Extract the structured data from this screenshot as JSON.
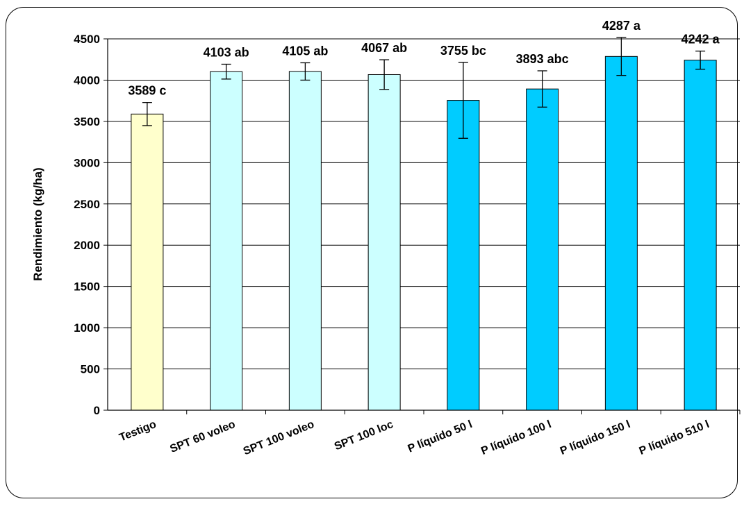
{
  "chart_data": {
    "type": "bar",
    "title": "",
    "xlabel": "",
    "ylabel": "Rendimiento (kg/ha)",
    "ylim": [
      0,
      4500
    ],
    "yticks": [
      0,
      500,
      1000,
      1500,
      2000,
      2500,
      3000,
      3500,
      4000,
      4500
    ],
    "grid": true,
    "categories": [
      "Testigo",
      "SPT 60 voleo",
      "SPT 100 voleo",
      "SPT 100 loc",
      "P líquido 50 l",
      "P líquido 100 l",
      "P líquido 150 l",
      "P líquido 510 l"
    ],
    "values": [
      3589,
      4103,
      4105,
      4067,
      3755,
      3893,
      4287,
      4242
    ],
    "error": [
      140,
      90,
      105,
      180,
      460,
      220,
      230,
      110
    ],
    "data_labels": [
      "3589 c",
      "4103 ab",
      "4105 ab",
      "4067 ab",
      "3755 bc",
      "3893 abc",
      "4287 a",
      "4242 a"
    ],
    "colors": [
      "#ffffcc",
      "#ccffff",
      "#ccffff",
      "#ccffff",
      "#00ccff",
      "#00ccff",
      "#00ccff",
      "#00ccff"
    ]
  }
}
